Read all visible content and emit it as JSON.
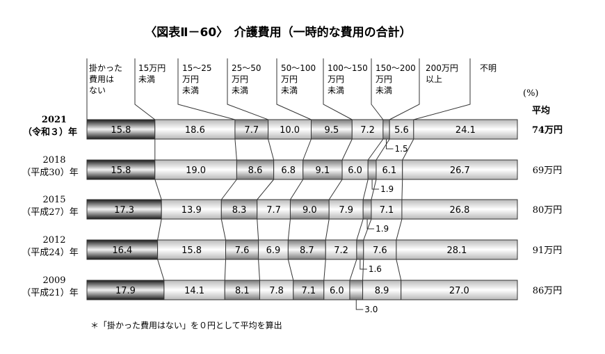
{
  "chart_data": {
    "type": "bar",
    "stacked": true,
    "orientation": "horizontal",
    "title": "〈図表Ⅱ－60〉　介護費用（一時的な費用の合計）",
    "unit": "(%)",
    "average_label": "平均",
    "categories": [
      "掛かった費用はない",
      "15万円未満",
      "15～25万円未満",
      "25～50万円未満",
      "50～100万円未満",
      "100～150万円未満",
      "150～200万円未満",
      "200万円以上",
      "不明"
    ],
    "category_header_lines": [
      [
        "掛かった",
        "費用は",
        "ない"
      ],
      [
        "15万円",
        "未満"
      ],
      [
        "15～25",
        "万円",
        "未満"
      ],
      [
        "25～50",
        "万円",
        "未満"
      ],
      [
        "50～100",
        "万円",
        "未満"
      ],
      [
        "100～150",
        "万円",
        "未満"
      ],
      [
        "150～200",
        "万円",
        "未満"
      ],
      [
        "200万円",
        "以上"
      ],
      [
        "不明"
      ]
    ],
    "rows": [
      {
        "year": "2021",
        "era": "（令和３）年",
        "values": [
          15.8,
          18.6,
          7.7,
          10.0,
          9.5,
          7.2,
          1.5,
          5.6,
          24.1
        ],
        "labels": [
          "15.8",
          "18.6",
          "7.7",
          "10.0",
          "9.5",
          "7.2",
          "1.5",
          "5.6",
          "24.1"
        ],
        "average": "74万円"
      },
      {
        "year": "2018",
        "era": "（平成30）年",
        "values": [
          15.8,
          19.0,
          8.6,
          6.8,
          9.1,
          6.0,
          1.9,
          6.1,
          26.7
        ],
        "labels": [
          "15.8",
          "19.0",
          "8.6",
          "6.8",
          "9.1",
          "6.0",
          "1.9",
          "6.1",
          "26.7"
        ],
        "average": "69万円"
      },
      {
        "year": "2015",
        "era": "（平成27）年",
        "values": [
          17.3,
          13.9,
          8.3,
          7.7,
          9.0,
          7.9,
          1.9,
          7.1,
          26.8
        ],
        "labels": [
          "17.3",
          "13.9",
          "8.3",
          "7.7",
          "9.0",
          "7.9",
          "1.9",
          "7.1",
          "26.8"
        ],
        "average": "80万円"
      },
      {
        "year": "2012",
        "era": "（平成24）年",
        "values": [
          16.4,
          15.8,
          7.6,
          6.9,
          8.7,
          7.2,
          1.6,
          7.6,
          28.1
        ],
        "labels": [
          "16.4",
          "15.8",
          "7.6",
          "6.9",
          "8.7",
          "7.2",
          "1.6",
          "7.6",
          "28.1"
        ],
        "average": "91万円"
      },
      {
        "year": "2009",
        "era": "（平成21）年",
        "values": [
          17.9,
          14.1,
          8.1,
          7.8,
          7.1,
          6.0,
          3.0,
          8.9,
          27.0
        ],
        "labels": [
          "17.9",
          "14.1",
          "8.1",
          "7.8",
          "7.1",
          "6.0",
          "3.0",
          "8.9",
          "27.0"
        ],
        "average": "86万円"
      }
    ],
    "note": "＊「掛かった費用はない」を０円として平均を算出"
  }
}
